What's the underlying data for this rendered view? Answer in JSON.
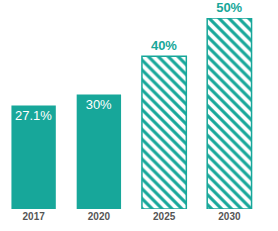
{
  "chart_data": {
    "type": "bar",
    "categories": [
      "2017",
      "2020",
      "2025",
      "2030"
    ],
    "series": [
      {
        "color": "#17a79a",
        "marker": "solid",
        "values": [
          27.1,
          30,
          null,
          null
        ],
        "value_labels": [
          "27.1%",
          "30%",
          null,
          null
        ]
      },
      {
        "color": "#17a79a",
        "marker": "hatched",
        "values": [
          null,
          null,
          40,
          50
        ],
        "value_labels": [
          null,
          null,
          "40%",
          "50%"
        ]
      }
    ],
    "ylim": [
      0,
      50
    ],
    "yticks": [],
    "grid": false,
    "stacked": false,
    "data_labels": true,
    "tick_labels": "x"
  }
}
